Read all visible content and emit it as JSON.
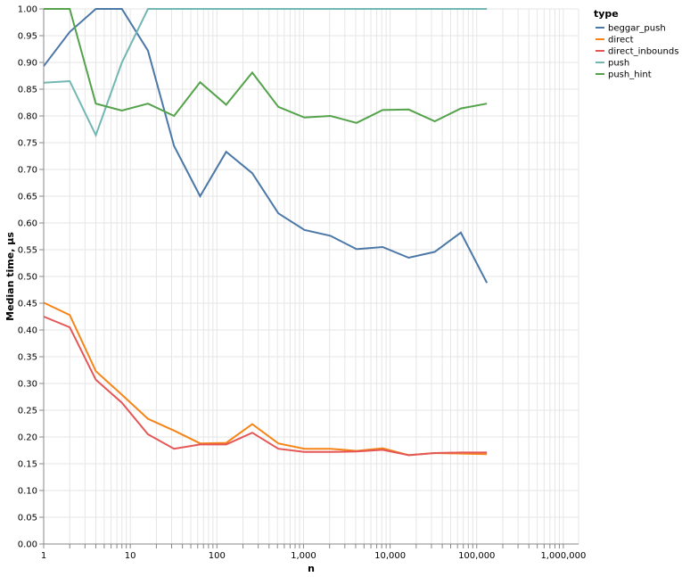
{
  "chart_data": {
    "type": "line",
    "xlabel": "n",
    "ylabel": "Median time, µs",
    "x_scale": "log",
    "xlim": [
      1,
      1500000
    ],
    "ylim": [
      0,
      1
    ],
    "grid": true,
    "legend_title": "type",
    "legend_position": "right",
    "x_ticks": [
      "1",
      "10",
      "100",
      "1,000",
      "10,000",
      "100,000",
      "1,000,000"
    ],
    "y_ticks": [
      "0.00",
      "0.05",
      "0.10",
      "0.15",
      "0.20",
      "0.25",
      "0.30",
      "0.35",
      "0.40",
      "0.45",
      "0.50",
      "0.55",
      "0.60",
      "0.65",
      "0.70",
      "0.75",
      "0.80",
      "0.85",
      "0.90",
      "0.95",
      "1.00"
    ],
    "x": [
      1,
      2,
      4,
      8,
      16,
      32,
      64,
      128,
      256,
      512,
      1024,
      2048,
      4096,
      8192,
      16384,
      32768,
      65536,
      131072
    ],
    "series": [
      {
        "name": "beggar_push",
        "color": "#4c78a8",
        "values": [
          0.893,
          0.957,
          1.0,
          1.0,
          0.922,
          0.744,
          0.65,
          0.733,
          0.693,
          0.618,
          0.587,
          0.576,
          0.551,
          0.555,
          0.535,
          0.546,
          0.582,
          0.488
        ]
      },
      {
        "name": "direct",
        "color": "#f58518",
        "values": [
          0.451,
          0.428,
          0.323,
          0.279,
          0.234,
          0.212,
          0.188,
          0.189,
          0.224,
          0.188,
          0.178,
          0.178,
          0.174,
          0.179,
          0.166,
          0.17,
          0.169,
          0.168
        ]
      },
      {
        "name": "direct_inbounds",
        "color": "#e45756",
        "values": [
          0.425,
          0.405,
          0.307,
          0.264,
          0.205,
          0.178,
          0.186,
          0.186,
          0.208,
          0.178,
          0.172,
          0.172,
          0.173,
          0.176,
          0.166,
          0.17,
          0.171,
          0.171
        ]
      },
      {
        "name": "push",
        "color": "#72b7b2",
        "values": [
          0.862,
          0.865,
          0.764,
          0.9,
          1.0,
          1.0,
          1.0,
          1.0,
          1.0,
          1.0,
          1.0,
          1.0,
          1.0,
          1.0,
          1.0,
          1.0,
          1.0,
          1.0
        ]
      },
      {
        "name": "push_hint",
        "color": "#54a24b",
        "values": [
          1.0,
          1.0,
          0.823,
          0.81,
          0.823,
          0.8,
          0.863,
          0.821,
          0.881,
          0.817,
          0.797,
          0.8,
          0.787,
          0.811,
          0.812,
          0.79,
          0.814,
          0.823
        ]
      }
    ]
  }
}
